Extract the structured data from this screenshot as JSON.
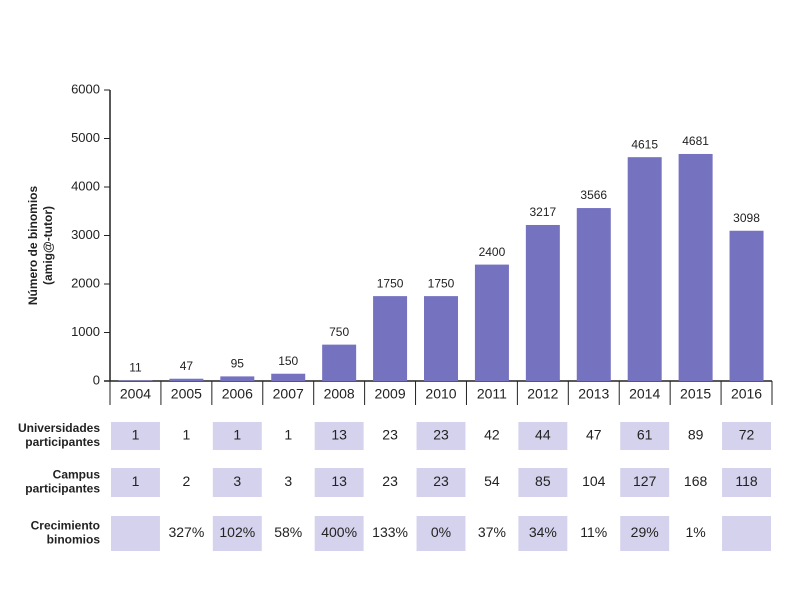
{
  "chart_data": {
    "type": "bar",
    "y_label": [
      "Número de binomios",
      "(amig@-tutor)"
    ],
    "categories": [
      "2004",
      "2005",
      "2006",
      "2007",
      "2008",
      "2009",
      "2010",
      "2011",
      "2012",
      "2013",
      "2014",
      "2015",
      "2016"
    ],
    "values": [
      11,
      47,
      95,
      150,
      750,
      1750,
      1750,
      2400,
      3217,
      3566,
      4615,
      4681,
      3098
    ],
    "color": "#7572c0",
    "ylim": [
      0,
      6000
    ],
    "yticks": [
      0,
      1000,
      2000,
      3000,
      4000,
      5000,
      6000
    ],
    "grid": false
  },
  "table": {
    "shade": "#d4d2ec",
    "rows": [
      {
        "label": [
          "Universidades",
          "participantes"
        ],
        "values": [
          "1",
          "1",
          "1",
          "1",
          "13",
          "23",
          "23",
          "42",
          "44",
          "47",
          "61",
          "89",
          "72"
        ]
      },
      {
        "label": [
          "Campus",
          "participantes"
        ],
        "values": [
          "1",
          "2",
          "3",
          "3",
          "13",
          "23",
          "23",
          "54",
          "85",
          "104",
          "127",
          "168",
          "118"
        ]
      },
      {
        "label": [
          "Crecimiento",
          "binomios"
        ],
        "values": [
          null,
          "327%",
          "102%",
          "58%",
          "400%",
          "133%",
          "0%",
          "37%",
          "34%",
          "11%",
          "29%",
          "1%",
          null
        ]
      }
    ]
  }
}
